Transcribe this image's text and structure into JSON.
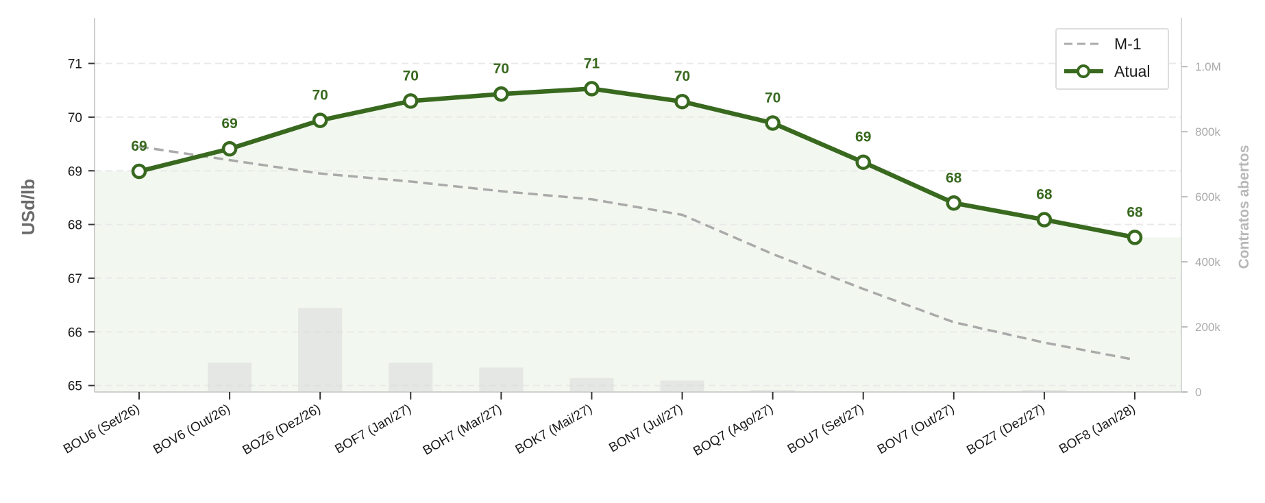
{
  "chart_data": {
    "type": "line",
    "categories": [
      "BOU6 (Set/26)",
      "BOV6 (Out/26)",
      "BOZ6 (Dez/26)",
      "BOF7 (Jan/27)",
      "BOH7 (Mar/27)",
      "BOK7 (Mai/27)",
      "BON7 (Jul/27)",
      "BOQ7 (Ago/27)",
      "BOU7 (Set/27)",
      "BOV7 (Out/27)",
      "BOZ7 (Dez/27)",
      "BOF8 (Jan/28)"
    ],
    "series": [
      {
        "name": "M-1",
        "values": [
          69.45,
          69.2,
          68.95,
          68.8,
          68.62,
          68.47,
          68.18,
          67.45,
          66.8,
          66.18,
          65.8,
          65.48
        ],
        "color": "#aaaaaa",
        "style": "dashed"
      },
      {
        "name": "Atual",
        "values": [
          68.99,
          69.41,
          69.94,
          70.3,
          70.43,
          70.53,
          70.29,
          69.89,
          69.16,
          68.4,
          68.09,
          67.76
        ],
        "color": "#38691f",
        "style": "solid-markers",
        "data_labels": [
          "69",
          "69",
          "70",
          "70",
          "70",
          "71",
          "70",
          "70",
          "69",
          "68",
          "68",
          "68"
        ]
      }
    ],
    "bars": {
      "name": "Contratos abertos",
      "values": [
        0,
        90000,
        258000,
        90000,
        75000,
        43000,
        35000,
        6000,
        0,
        0,
        6000,
        0
      ],
      "color": "#d8d8d8"
    },
    "area_color": "#f2f8ef",
    "ylabel_left": "USd/lb",
    "ylim_left": [
      64.88,
      71.85
    ],
    "yticks_left": [
      65,
      66,
      67,
      68,
      69,
      70,
      71
    ],
    "ylabel_right": "Contratos abertos",
    "ylim_right": [
      0,
      1150000
    ],
    "yticks_right": [
      0,
      200000,
      400000,
      600000,
      800000,
      1000000
    ],
    "ytick_labels_right": [
      "0",
      "200k",
      "400k",
      "600k",
      "800k",
      "1.0M"
    ],
    "legend": {
      "placement": "top-right",
      "entries": [
        "M-1",
        "Atual"
      ]
    },
    "grid": "horizontal-dashed"
  }
}
